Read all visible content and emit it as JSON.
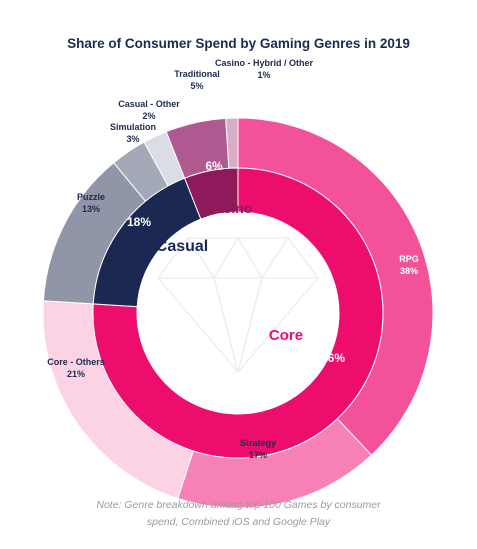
{
  "title": "Share of Consumer Spend by Gaming Genres in 2019",
  "note": {
    "line1": "Note: Genre breakdown among top 100 Games by consumer",
    "line2": "spend, Combined iOS and Google Play"
  },
  "chart_data": {
    "type": "donut",
    "title": "Share of Consumer Spend by Gaming Genres in 2019",
    "inner_ring": [
      {
        "name": "Core",
        "value": 76,
        "label": "76%",
        "color": "#ec0d6d"
      },
      {
        "name": "Casual",
        "value": 18,
        "label": "18%",
        "color": "#1b2952"
      },
      {
        "name": "Casino",
        "value": 6,
        "label": "6%",
        "color": "#8e1a5c"
      }
    ],
    "outer_ring": [
      {
        "name": "RPG",
        "value": 38,
        "label": "38%",
        "color": "#f3529a",
        "parent": "Core"
      },
      {
        "name": "Strategy",
        "value": 17,
        "label": "17%",
        "color": "#f781b6",
        "parent": "Core"
      },
      {
        "name": "Core - Others",
        "value": 21,
        "label": "21%",
        "color": "#fcd3e4",
        "parent": "Core"
      },
      {
        "name": "Puzzle",
        "value": 13,
        "label": "13%",
        "color": "#8f96a8",
        "parent": "Casual"
      },
      {
        "name": "Simulation",
        "value": 3,
        "label": "3%",
        "color": "#a4a9b8",
        "parent": "Casual"
      },
      {
        "name": "Casual - Other",
        "value": 2,
        "label": "2%",
        "color": "#dadde4",
        "parent": "Casual"
      },
      {
        "name": "Traditional",
        "value": 5,
        "label": "5%",
        "color": "#b05990",
        "parent": "Casino"
      },
      {
        "name": "Casino - Hybrid / Other",
        "value": 1,
        "label": "1%",
        "color": "#d8acc5",
        "parent": "Casino"
      }
    ],
    "category_labels": [
      "Core",
      "Casual",
      "Casino"
    ]
  }
}
